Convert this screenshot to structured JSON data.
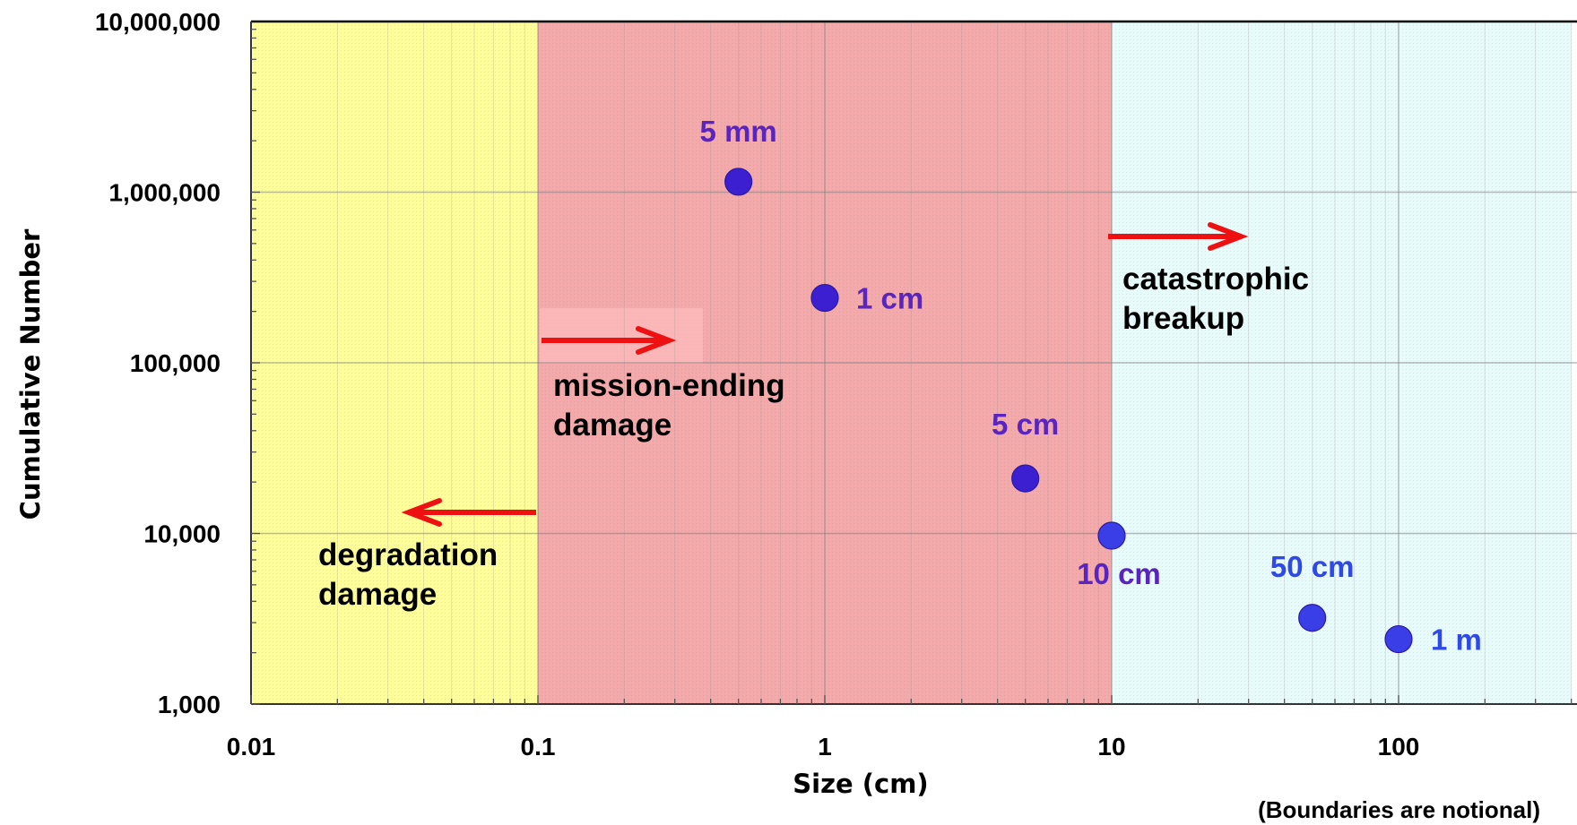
{
  "chart_data": {
    "type": "scatter",
    "title": "",
    "xlabel": "Size (cm)",
    "ylabel": "Cumulative Number",
    "x_scale": "log",
    "y_scale": "log",
    "xlim": [
      0.01,
      400
    ],
    "ylim": [
      1000,
      10000000
    ],
    "grid": true,
    "x_ticks": [
      {
        "value": 0.01,
        "label": "0.01"
      },
      {
        "value": 0.1,
        "label": "0.1"
      },
      {
        "value": 1,
        "label": "1"
      },
      {
        "value": 10,
        "label": "10"
      },
      {
        "value": 100,
        "label": "100"
      }
    ],
    "y_ticks": [
      {
        "value": 1000,
        "label": "1,000"
      },
      {
        "value": 10000,
        "label": "10,000"
      },
      {
        "value": 100000,
        "label": "100,000"
      },
      {
        "value": 1000000,
        "label": "1,000,000"
      },
      {
        "value": 10000000,
        "label": "10,000,000"
      }
    ],
    "regions": [
      {
        "x_from": 0.01,
        "x_to": 0.1,
        "color": "#ffff99",
        "lines": [
          "degradation",
          "damage"
        ],
        "arrow": "left"
      },
      {
        "x_from": 0.1,
        "x_to": 10,
        "color": "#f4a9aa",
        "lines": [
          "mission-ending",
          "damage"
        ],
        "arrow": "right"
      },
      {
        "x_from": 10,
        "x_to": 400,
        "color": "#e8fbfb",
        "lines": [
          "catastrophic",
          "breakup"
        ],
        "arrow": "right"
      }
    ],
    "points": [
      {
        "x": 0.5,
        "y": 1150000,
        "label": "5 mm",
        "color": "#3b1fd0",
        "label_color": "#5a24c0"
      },
      {
        "x": 1,
        "y": 240000,
        "label": "1 cm",
        "color": "#3b1fd0",
        "label_color": "#5a24c0"
      },
      {
        "x": 5,
        "y": 21000,
        "label": "5 cm",
        "color": "#3b1fd0",
        "label_color": "#5a24c0"
      },
      {
        "x": 10,
        "y": 9700,
        "label": "10 cm",
        "color": "#3a3ee6",
        "label_color": "#5a24c0"
      },
      {
        "x": 50,
        "y": 3200,
        "label": "50 cm",
        "color": "#3a3ee6",
        "label_color": "#2f49e8"
      },
      {
        "x": 100,
        "y": 2400,
        "label": "1 m",
        "color": "#3a3ee6",
        "label_color": "#2f49e8"
      }
    ],
    "arrow_color": "#ee1111",
    "note": "(Boundaries are notional)"
  }
}
